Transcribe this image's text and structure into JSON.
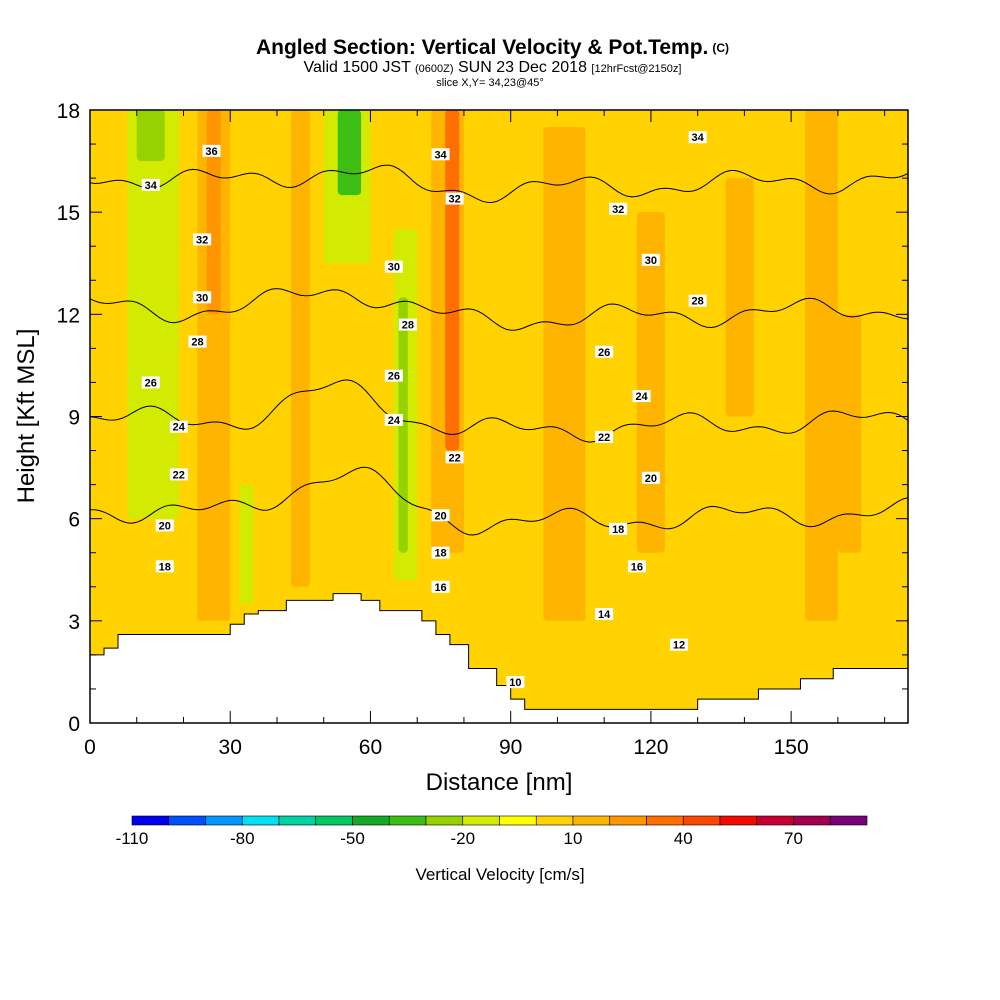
{
  "header": {
    "title": "Angled Section: Vertical Velocity & Pot.Temp.",
    "title_tag": "(C)",
    "valid_prefix": "Valid 1500 JST",
    "valid_small_1": "(0600Z)",
    "valid_date": "SUN 23 Dec 2018",
    "valid_small_2": "[12hrFcst@2150z]",
    "slice": "slice X,Y= 34,23@45°"
  },
  "chart_data": {
    "type": "heatmap",
    "xlabel": "Distance [nm]",
    "ylabel": "Height [Kft MSL]",
    "xlim": [
      0,
      175
    ],
    "ylim": [
      0,
      18
    ],
    "x_ticks": [
      0,
      30,
      60,
      90,
      120,
      150
    ],
    "y_ticks": [
      0,
      3,
      6,
      9,
      12,
      15,
      18
    ],
    "terrain": {
      "distance_nm": [
        0,
        3,
        3,
        6,
        6,
        30,
        30,
        33,
        33,
        36,
        36,
        42,
        42,
        52,
        52,
        58,
        58,
        62,
        62,
        71,
        71,
        74,
        74,
        77,
        77,
        81,
        81,
        87,
        87,
        90,
        90,
        93,
        93,
        130,
        130,
        143,
        143,
        152,
        152,
        159,
        159,
        175
      ],
      "height_kft": [
        2.0,
        2.0,
        2.2,
        2.2,
        2.6,
        2.6,
        2.9,
        2.9,
        3.2,
        3.2,
        3.3,
        3.3,
        3.6,
        3.6,
        3.8,
        3.8,
        3.6,
        3.6,
        3.3,
        3.3,
        3.0,
        3.0,
        2.6,
        2.6,
        2.3,
        2.3,
        1.6,
        1.6,
        1.1,
        1.1,
        0.7,
        0.7,
        0.4,
        0.4,
        0.7,
        0.7,
        1.0,
        1.0,
        1.3,
        1.3,
        1.6,
        1.6
      ]
    },
    "velocity_columns": [
      {
        "x": [
          8,
          19
        ],
        "value": -15,
        "ylim": [
          6.0,
          18
        ]
      },
      {
        "x": [
          10,
          16
        ],
        "value": -25,
        "ylim": [
          16.5,
          18
        ]
      },
      {
        "x": [
          23,
          30
        ],
        "value": 15,
        "ylim": [
          3.0,
          18
        ]
      },
      {
        "x": [
          25,
          28
        ],
        "value": 22,
        "ylim": [
          12.0,
          18
        ]
      },
      {
        "x": [
          32,
          35
        ],
        "value": -12,
        "ylim": [
          3.5,
          7.0
        ]
      },
      {
        "x": [
          43,
          47
        ],
        "value": 15,
        "ylim": [
          4.0,
          18
        ]
      },
      {
        "x": [
          50,
          60
        ],
        "value": -20,
        "ylim": [
          13.5,
          18
        ]
      },
      {
        "x": [
          53,
          58
        ],
        "value": -35,
        "ylim": [
          15.5,
          18
        ]
      },
      {
        "x": [
          65,
          70
        ],
        "value": -18,
        "ylim": [
          4.2,
          14.5
        ]
      },
      {
        "x": [
          66,
          68
        ],
        "value": -30,
        "ylim": [
          5.0,
          12.5
        ]
      },
      {
        "x": [
          73,
          80
        ],
        "value": 18,
        "ylim": [
          5.0,
          18
        ]
      },
      {
        "x": [
          76,
          79
        ],
        "value": 30,
        "ylim": [
          8.0,
          18
        ]
      },
      {
        "x": [
          97,
          106
        ],
        "value": 12,
        "ylim": [
          3.0,
          17.5
        ]
      },
      {
        "x": [
          117,
          123
        ],
        "value": 10,
        "ylim": [
          5.0,
          15.0
        ]
      },
      {
        "x": [
          136,
          142
        ],
        "value": 10,
        "ylim": [
          9.0,
          16.0
        ]
      },
      {
        "x": [
          153,
          160
        ],
        "value": 10,
        "ylim": [
          3.0,
          18
        ]
      },
      {
        "x": [
          160,
          165
        ],
        "value": 10,
        "ylim": [
          5.0,
          12.0
        ]
      }
    ],
    "background_value": 5,
    "pot_temp_contours": [
      10,
      12,
      14,
      16,
      18,
      20,
      22,
      24,
      26,
      28,
      30,
      32,
      34,
      36
    ],
    "contour_labels": [
      {
        "text": "36",
        "x": 26,
        "y": 16.8
      },
      {
        "text": "34",
        "x": 13,
        "y": 15.8
      },
      {
        "text": "34",
        "x": 75,
        "y": 16.7
      },
      {
        "text": "34",
        "x": 130,
        "y": 17.2
      },
      {
        "text": "32",
        "x": 24,
        "y": 14.2
      },
      {
        "text": "32",
        "x": 78,
        "y": 15.4
      },
      {
        "text": "32",
        "x": 113,
        "y": 15.1
      },
      {
        "text": "30",
        "x": 24,
        "y": 12.5
      },
      {
        "text": "30",
        "x": 65,
        "y": 13.4
      },
      {
        "text": "30",
        "x": 120,
        "y": 13.6
      },
      {
        "text": "28",
        "x": 23,
        "y": 11.2
      },
      {
        "text": "28",
        "x": 68,
        "y": 11.7
      },
      {
        "text": "28",
        "x": 130,
        "y": 12.4
      },
      {
        "text": "26",
        "x": 13,
        "y": 10.0
      },
      {
        "text": "26",
        "x": 65,
        "y": 10.2
      },
      {
        "text": "26",
        "x": 110,
        "y": 10.9
      },
      {
        "text": "24",
        "x": 19,
        "y": 8.7
      },
      {
        "text": "24",
        "x": 65,
        "y": 8.9
      },
      {
        "text": "24",
        "x": 118,
        "y": 9.6
      },
      {
        "text": "22",
        "x": 19,
        "y": 7.3
      },
      {
        "text": "22",
        "x": 78,
        "y": 7.8
      },
      {
        "text": "22",
        "x": 110,
        "y": 8.4
      },
      {
        "text": "20",
        "x": 16,
        "y": 5.8
      },
      {
        "text": "20",
        "x": 75,
        "y": 6.1
      },
      {
        "text": "20",
        "x": 120,
        "y": 7.2
      },
      {
        "text": "18",
        "x": 16,
        "y": 4.6
      },
      {
        "text": "18",
        "x": 75,
        "y": 5.0
      },
      {
        "text": "18",
        "x": 113,
        "y": 5.7
      },
      {
        "text": "16",
        "x": 75,
        "y": 4.0
      },
      {
        "text": "16",
        "x": 117,
        "y": 4.6
      },
      {
        "text": "14",
        "x": 110,
        "y": 3.2
      },
      {
        "text": "12",
        "x": 126,
        "y": 2.3
      },
      {
        "text": "10",
        "x": 91,
        "y": 1.2
      }
    ]
  },
  "colorbar": {
    "title": "Vertical Velocity [cm/s]",
    "colors": [
      "#0000f0",
      "#0050ff",
      "#0096ff",
      "#00e0f0",
      "#00d2a0",
      "#00c864",
      "#14aa28",
      "#3cbe14",
      "#96d200",
      "#d2eb00",
      "#ffff00",
      "#ffd200",
      "#ffb400",
      "#ff9600",
      "#ff6e00",
      "#ff4600",
      "#f00a00",
      "#c80032",
      "#a00050",
      "#780078"
    ],
    "min": -110,
    "step": 10,
    "tick_labels": [
      "-110",
      "-80",
      "-50",
      "-20",
      "10",
      "40",
      "70"
    ]
  }
}
